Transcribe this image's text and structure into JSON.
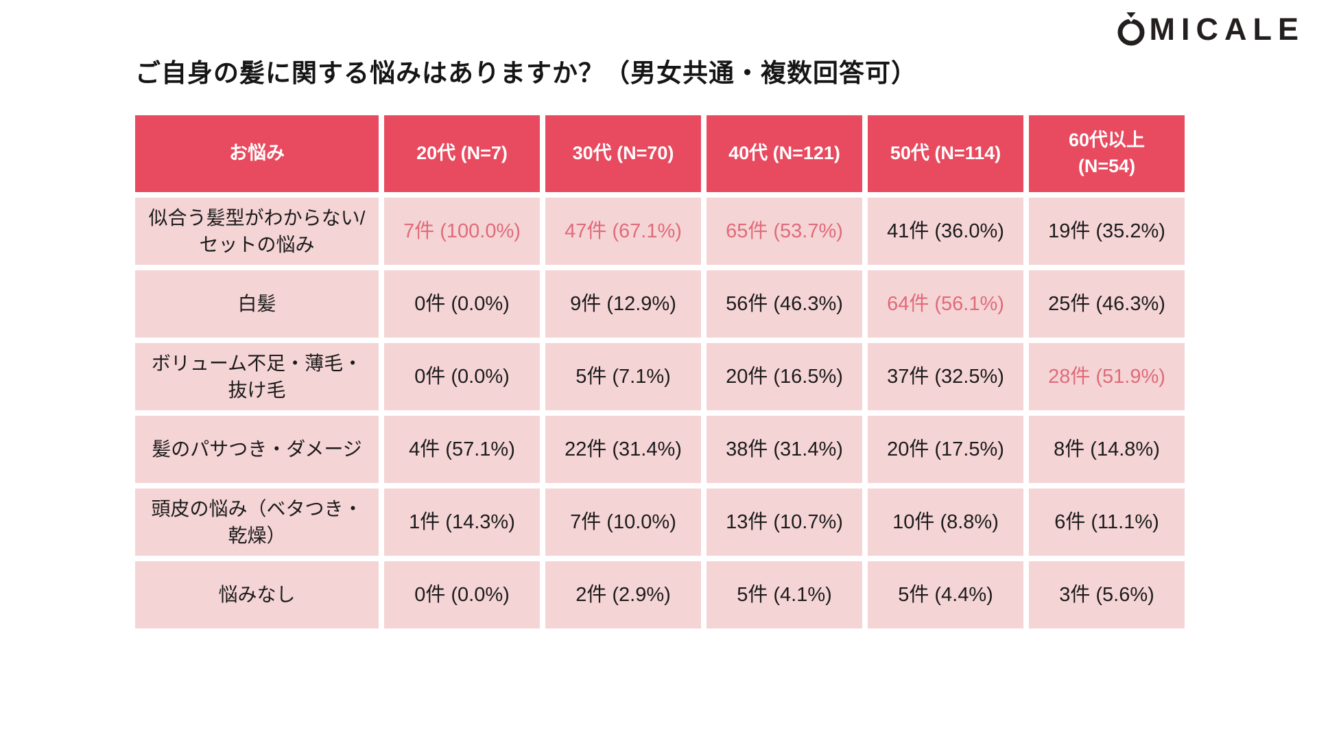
{
  "logo": {
    "brand": "OMICALE",
    "icon": "ring-with-gem",
    "letters": "MICALE"
  },
  "title": "ご自身の髪に関する悩みはありますか？（男女共通・複数回答可）",
  "colors": {
    "header_bg": "#e84a5f",
    "cell_bg": "#f5d4d6",
    "highlight_text": "#df6b79",
    "body_text": "#1b1b1b",
    "header_text": "#ffffff"
  },
  "chart_data": {
    "type": "table",
    "title": "ご自身の髪に関する悩みはありますか？（男女共通・複数回答可）",
    "columns": [
      {
        "lines": [
          "お悩み"
        ]
      },
      {
        "lines": [
          "20代 (N=7)"
        ]
      },
      {
        "lines": [
          "30代 (N=70)"
        ]
      },
      {
        "lines": [
          "40代 (N=121)"
        ]
      },
      {
        "lines": [
          "50代 (N=114)"
        ]
      },
      {
        "lines": [
          "60代以上",
          "(N=54)"
        ]
      }
    ],
    "group_sizes": {
      "20代": 7,
      "30代": 70,
      "40代": 121,
      "50代": 114,
      "60代以上": 54
    },
    "rows": [
      {
        "label_lines": [
          "似合う髪型がわからない/",
          "セットの悩み"
        ],
        "counts": [
          7,
          47,
          65,
          41,
          19
        ],
        "percents": [
          100.0,
          67.1,
          53.7,
          36.0,
          35.2
        ],
        "display": [
          "7件 (100.0%)",
          "47件 (67.1%)",
          "65件 (53.7%)",
          "41件 (36.0%)",
          "19件 (35.2%)"
        ],
        "highlighted": [
          true,
          true,
          true,
          false,
          false
        ]
      },
      {
        "label_lines": [
          "白髪"
        ],
        "counts": [
          0,
          9,
          56,
          64,
          25
        ],
        "percents": [
          0.0,
          12.9,
          46.3,
          56.1,
          46.3
        ],
        "display": [
          "0件 (0.0%)",
          "9件 (12.9%)",
          "56件 (46.3%)",
          "64件 (56.1%)",
          "25件 (46.3%)"
        ],
        "highlighted": [
          false,
          false,
          false,
          true,
          false
        ]
      },
      {
        "label_lines": [
          "ボリューム不足・薄毛・",
          "抜け毛"
        ],
        "counts": [
          0,
          5,
          20,
          37,
          28
        ],
        "percents": [
          0.0,
          7.1,
          16.5,
          32.5,
          51.9
        ],
        "display": [
          "0件 (0.0%)",
          "5件 (7.1%)",
          "20件 (16.5%)",
          "37件 (32.5%)",
          "28件 (51.9%)"
        ],
        "highlighted": [
          false,
          false,
          false,
          false,
          true
        ]
      },
      {
        "label_lines": [
          "髪のパサつき・ダメージ"
        ],
        "counts": [
          4,
          22,
          38,
          20,
          8
        ],
        "percents": [
          57.1,
          31.4,
          31.4,
          17.5,
          14.8
        ],
        "display": [
          "4件 (57.1%)",
          "22件 (31.4%)",
          "38件 (31.4%)",
          "20件 (17.5%)",
          "8件 (14.8%)"
        ],
        "highlighted": [
          false,
          false,
          false,
          false,
          false
        ]
      },
      {
        "label_lines": [
          "頭皮の悩み（ベタつき・",
          "乾燥）"
        ],
        "counts": [
          1,
          7,
          13,
          10,
          6
        ],
        "percents": [
          14.3,
          10.0,
          10.7,
          8.8,
          11.1
        ],
        "display": [
          "1件 (14.3%)",
          "7件 (10.0%)",
          "13件 (10.7%)",
          "10件 (8.8%)",
          "6件 (11.1%)"
        ],
        "highlighted": [
          false,
          false,
          false,
          false,
          false
        ]
      },
      {
        "label_lines": [
          "悩みなし"
        ],
        "counts": [
          0,
          2,
          5,
          5,
          3
        ],
        "percents": [
          0.0,
          2.9,
          4.1,
          4.4,
          5.6
        ],
        "display": [
          "0件 (0.0%)",
          "2件 (2.9%)",
          "5件 (4.1%)",
          "5件 (4.4%)",
          "3件 (5.6%)"
        ],
        "highlighted": [
          false,
          false,
          false,
          false,
          false
        ]
      }
    ],
    "legend_position": "none",
    "grid": false
  }
}
